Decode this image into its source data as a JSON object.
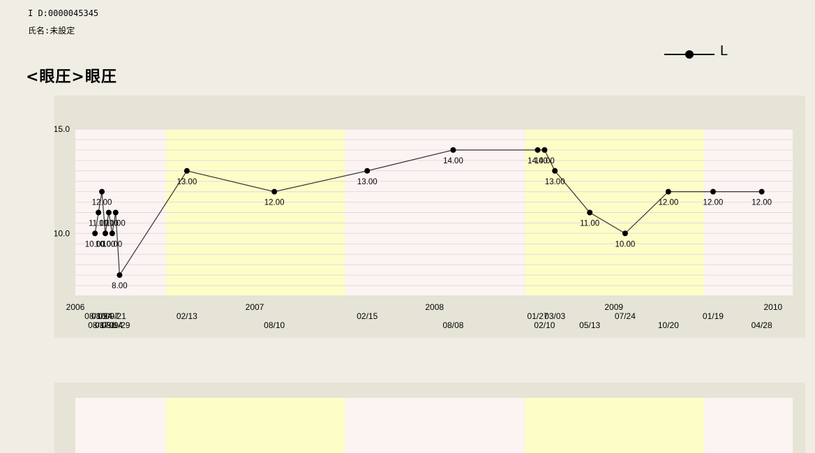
{
  "header": {
    "id_text": "I D:0000045345",
    "name_text": "氏名:未設定",
    "title": "<眼圧>眼圧"
  },
  "legend": {
    "label": "L",
    "color": "#000000"
  },
  "colors": {
    "background": "#f0eee4",
    "panel": "#e6e4d6",
    "plot_pink": "#fbf4f2",
    "plot_yellow": "#fdfdc8",
    "gridline": "#e0dcdc",
    "series": "#000000"
  },
  "chart_data": {
    "type": "line",
    "title": "<眼圧>眼圧",
    "xlabel": "",
    "ylabel": "",
    "ylim": [
      7.0,
      15.0
    ],
    "yticks": [
      "15.0",
      "10.0"
    ],
    "year_labels": [
      "2006",
      "2007",
      "2008",
      "2009",
      "2010"
    ],
    "year_bands": [
      {
        "from": "2006-01-01",
        "to": "2007-01-01",
        "color": "pink"
      },
      {
        "from": "2007-01-01",
        "to": "2008-01-01",
        "color": "yellow"
      },
      {
        "from": "2008-01-01",
        "to": "2009-01-01",
        "color": "pink"
      },
      {
        "from": "2009-01-01",
        "to": "2010-01-01",
        "color": "yellow"
      },
      {
        "from": "2010-01-01",
        "to": "2010-06-30",
        "color": "pink"
      }
    ],
    "x_range": [
      "2006-07-01",
      "2010-06-30"
    ],
    "legend_position": "top-right",
    "grid": true,
    "series": [
      {
        "name": "L",
        "points": [
          {
            "date": "2006-08-10",
            "value": 10.0,
            "label": "10.00",
            "date_label": "08/10"
          },
          {
            "date": "2006-08-17",
            "value": 11.0,
            "label": "11.00",
            "date_label": "08/17"
          },
          {
            "date": "2006-08-24",
            "value": 12.0,
            "label": "12.00",
            "date_label": "08/24"
          },
          {
            "date": "2006-08-31",
            "value": 10.0,
            "label": "10.00",
            "date_label": "08/31"
          },
          {
            "date": "2006-09-07",
            "value": 11.0,
            "label": "11.00",
            "date_label": "09/07"
          },
          {
            "date": "2006-09-14",
            "value": 10.0,
            "label": "10.00",
            "date_label": "09/14"
          },
          {
            "date": "2006-09-21",
            "value": 11.0,
            "label": "11.00",
            "date_label": "09/21"
          },
          {
            "date": "2006-09-29",
            "value": 8.0,
            "label": "8.00",
            "date_label": "09/29"
          },
          {
            "date": "2007-02-13",
            "value": 13.0,
            "label": "13.00",
            "date_label": "02/13"
          },
          {
            "date": "2007-08-10",
            "value": 12.0,
            "label": "12.00",
            "date_label": "08/10"
          },
          {
            "date": "2008-02-15",
            "value": 13.0,
            "label": "13.00",
            "date_label": "02/15"
          },
          {
            "date": "2008-08-08",
            "value": 14.0,
            "label": "14.00",
            "date_label": "08/08"
          },
          {
            "date": "2009-01-27",
            "value": 14.0,
            "label": "14.00",
            "date_label": "01/27"
          },
          {
            "date": "2009-02-10",
            "value": 14.0,
            "label": "14.00",
            "date_label": "02/10"
          },
          {
            "date": "2009-03-03",
            "value": 13.0,
            "label": "13.00",
            "date_label": "03/03"
          },
          {
            "date": "2009-05-13",
            "value": 11.0,
            "label": "11.00",
            "date_label": "05/13"
          },
          {
            "date": "2009-07-24",
            "value": 10.0,
            "label": "10.00",
            "date_label": "07/24"
          },
          {
            "date": "2009-10-20",
            "value": 12.0,
            "label": "12.00",
            "date_label": "10/20"
          },
          {
            "date": "2010-01-19",
            "value": 12.0,
            "label": "12.00",
            "date_label": "01/19"
          },
          {
            "date": "2010-04-28",
            "value": 12.0,
            "label": "12.00",
            "date_label": "04/28"
          }
        ]
      }
    ]
  }
}
